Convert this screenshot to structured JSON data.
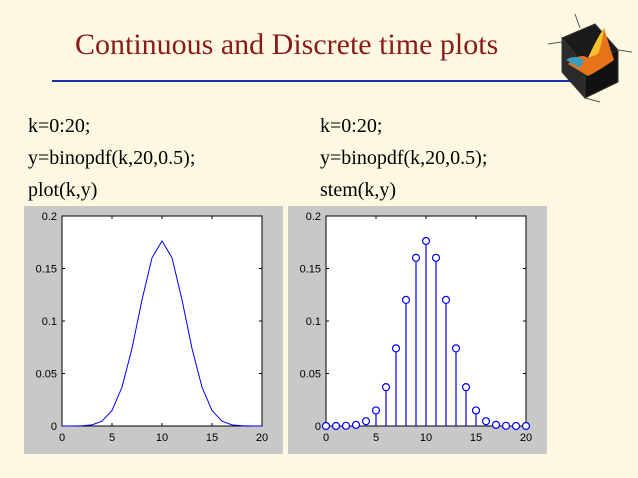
{
  "slide": {
    "title": "Continuous and Discrete time plots",
    "left_code": [
      "k=0:20;",
      "y=binopdf(k,20,0.5);",
      "plot(k,y)"
    ],
    "right_code": [
      "k=0:20;",
      "y=binopdf(k,20,0.5);",
      "stem(k,y)"
    ],
    "logo_icon": "matlab-membrane-logo-icon"
  },
  "colors": {
    "title": "#8b1a1a",
    "rule": "#1f2bb0",
    "background": "#fdf8e1",
    "figure_bg": "#c8c8c8",
    "series": "#0000ff"
  },
  "chart_data": [
    {
      "type": "line",
      "xlim": [
        0,
        20
      ],
      "ylim": [
        0,
        0.2
      ],
      "xticks": [
        0,
        5,
        10,
        15,
        20
      ],
      "yticks": [
        0,
        0.05,
        0.1,
        0.15,
        0.2
      ],
      "xtick_labels": [
        "0",
        "5",
        "10",
        "15",
        "20"
      ],
      "ytick_labels": [
        "0",
        "0.05",
        "0.1",
        "0.15",
        "0.2"
      ],
      "grid": false,
      "x": [
        0,
        1,
        2,
        3,
        4,
        5,
        6,
        7,
        8,
        9,
        10,
        11,
        12,
        13,
        14,
        15,
        16,
        17,
        18,
        19,
        20
      ],
      "y": [
        1e-06,
        1.9e-05,
        0.00018,
        0.0011,
        0.0046,
        0.0148,
        0.037,
        0.0739,
        0.1201,
        0.1602,
        0.1762,
        0.1602,
        0.1201,
        0.0739,
        0.037,
        0.0148,
        0.0046,
        0.0011,
        0.00018,
        1.9e-05,
        1e-06
      ]
    },
    {
      "type": "stem",
      "xlim": [
        0,
        20
      ],
      "ylim": [
        0,
        0.2
      ],
      "xticks": [
        0,
        5,
        10,
        15,
        20
      ],
      "yticks": [
        0,
        0.05,
        0.1,
        0.15,
        0.2
      ],
      "xtick_labels": [
        "0",
        "5",
        "10",
        "15",
        "20"
      ],
      "ytick_labels": [
        "0",
        "0.05",
        "0.1",
        "0.15",
        "0.2"
      ],
      "grid": false,
      "x": [
        0,
        1,
        2,
        3,
        4,
        5,
        6,
        7,
        8,
        9,
        10,
        11,
        12,
        13,
        14,
        15,
        16,
        17,
        18,
        19,
        20
      ],
      "y": [
        1e-06,
        1.9e-05,
        0.00018,
        0.0011,
        0.0046,
        0.0148,
        0.037,
        0.0739,
        0.1201,
        0.1602,
        0.1762,
        0.1602,
        0.1201,
        0.0739,
        0.037,
        0.0148,
        0.0046,
        0.0011,
        0.00018,
        1.9e-05,
        1e-06
      ]
    }
  ]
}
